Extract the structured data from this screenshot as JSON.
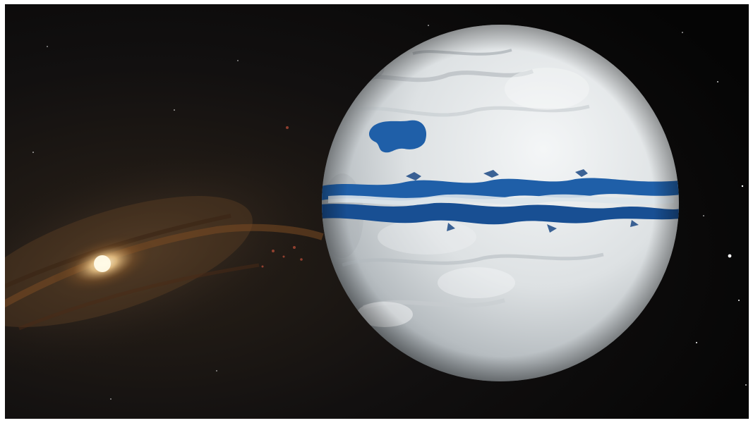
{
  "image": {
    "kind": "illustration",
    "subjects": [
      "spiral-galaxy",
      "snowball-planet",
      "equatorial-ocean-band",
      "ice-lake",
      "stars"
    ]
  },
  "colors": {
    "space": "#0a0908",
    "galaxy_core": "#fff2c8",
    "galaxy_dust": "#8a5a2a",
    "ice": "#e9ecee",
    "ice_shadow": "#9aa1a6",
    "ocean": "#1f5fa8",
    "ocean_deep": "#0f3f7e",
    "frame": "#ffffff"
  }
}
